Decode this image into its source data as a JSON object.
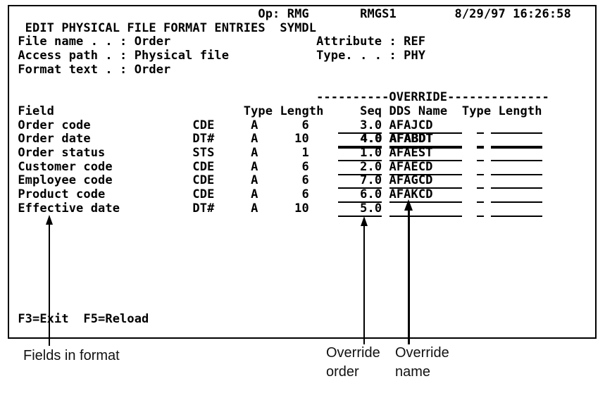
{
  "screen": {
    "op_label": "Op:",
    "operator": "RMG",
    "system": "RMGS1",
    "date": "8/29/97",
    "time": "16:26:58",
    "title": "EDIT PHYSICAL FILE FORMAT ENTRIES",
    "member": "SYMDL",
    "file_info": {
      "file_name": {
        "label": "File name . . :",
        "value": "Order"
      },
      "access_path": {
        "label": "Access path . :",
        "value": "Physical file"
      },
      "format_text": {
        "label": "Format text . :",
        "value": "Order"
      },
      "attribute": {
        "label": "Attribute :",
        "value": "REF"
      },
      "type": {
        "label": "Type. . . :",
        "value": "PHY"
      }
    },
    "override_banner": "----------OVERRIDE--------------",
    "columns": {
      "field": "Field",
      "type": "Type",
      "length": "Length",
      "seq": "Seq",
      "dds_name": "DDS Name",
      "ov_type": "Type",
      "ov_length": "Length"
    },
    "rows": [
      {
        "field": "Order code",
        "attr": "CDE",
        "type": "A",
        "length": "6",
        "seq": "3.0",
        "dds_name": "AFAJCD",
        "ov_type": "",
        "ov_length": "",
        "highlight": false
      },
      {
        "field": "Order date",
        "attr": "DT#",
        "type": "A",
        "length": "10",
        "seq": "4.0",
        "dds_name": "AFABDT",
        "ov_type": "",
        "ov_length": "",
        "highlight": true
      },
      {
        "field": "Order status",
        "attr": "STS",
        "type": "A",
        "length": "1",
        "seq": "1.0",
        "dds_name": "AFAEST",
        "ov_type": "",
        "ov_length": "",
        "highlight": false
      },
      {
        "field": "Customer code",
        "attr": "CDE",
        "type": "A",
        "length": "6",
        "seq": "2.0",
        "dds_name": "AFAECD",
        "ov_type": "",
        "ov_length": "",
        "highlight": false
      },
      {
        "field": "Employee code",
        "attr": "CDE",
        "type": "A",
        "length": "6",
        "seq": "7.0",
        "dds_name": "AFAGCD",
        "ov_type": "",
        "ov_length": "",
        "highlight": false
      },
      {
        "field": "Product code",
        "attr": "CDE",
        "type": "A",
        "length": "6",
        "seq": "6.0",
        "dds_name": "AFAKCD",
        "ov_type": "",
        "ov_length": "",
        "highlight": false
      },
      {
        "field": "Effective date",
        "attr": "DT#",
        "type": "A",
        "length": "10",
        "seq": "5.0",
        "dds_name": "",
        "ov_type": "",
        "ov_length": "",
        "highlight": false
      }
    ],
    "function_keys": [
      "F3=Exit",
      "F5=Reload"
    ]
  },
  "annotations": {
    "fields_in_format": {
      "text": "Fields in format"
    },
    "override_order": {
      "line1": "Override",
      "line2": "order"
    },
    "override_name": {
      "line1": "Override",
      "line2": "name"
    }
  }
}
